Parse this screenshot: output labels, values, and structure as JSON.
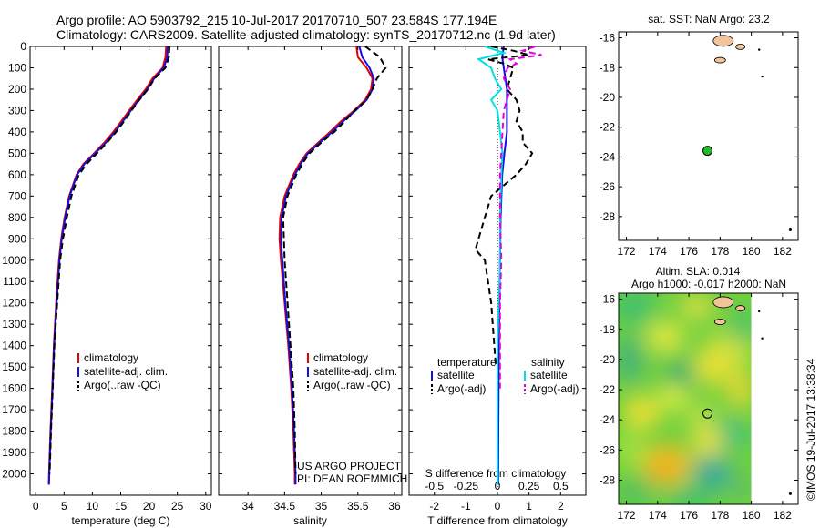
{
  "header": {
    "line1": "Argo profile: AO 5903792_215 10-Jul-2017 20170710_507 23.584S 177.194E",
    "line2": "Climatology: CARS2009. Satellite-adjusted climatology: synTS_20170712.nc (1.9d later)"
  },
  "colors": {
    "climatology": "#e00000",
    "satellite": "#1010e0",
    "argo": "#000000",
    "sal_satellite": "#00e0e0",
    "sal_argo": "#e000e0",
    "land": "#f2c49b",
    "float_marker": "#22bb22"
  },
  "chart_data": [
    {
      "type": "line",
      "name": "temperature-profile",
      "xlabel": "temperature (deg C)",
      "xlim": [
        -1,
        31
      ],
      "xticks": [
        0,
        5,
        10,
        15,
        20,
        25,
        30
      ],
      "ylim": [
        0,
        2100
      ],
      "yticks": [
        0,
        100,
        200,
        300,
        400,
        500,
        600,
        700,
        800,
        900,
        1000,
        1100,
        1200,
        1300,
        1400,
        1500,
        1600,
        1700,
        1800,
        1900,
        2000
      ],
      "y_reversed": true,
      "legend": {
        "position": "bottom-right",
        "entries": [
          "climatology",
          "satellite-adj. clim.",
          "Argo(..raw -QC)"
        ]
      },
      "series": [
        {
          "name": "climatology",
          "style": "solid",
          "depth": [
            0,
            50,
            100,
            150,
            200,
            250,
            300,
            350,
            400,
            450,
            500,
            550,
            600,
            700,
            800,
            900,
            1000,
            1200,
            1400,
            1600,
            1800,
            2000,
            2050
          ],
          "values": [
            23.0,
            22.9,
            22.4,
            20.6,
            19.4,
            17.9,
            16.5,
            15.1,
            13.7,
            12.1,
            10.3,
            8.4,
            7.2,
            5.9,
            5.1,
            4.5,
            4.1,
            3.6,
            3.2,
            2.9,
            2.6,
            2.35,
            2.3
          ]
        },
        {
          "name": "satellite-adj. clim.",
          "style": "solid",
          "depth": [
            0,
            50,
            100,
            150,
            200,
            250,
            300,
            350,
            400,
            450,
            500,
            550,
            600,
            700,
            800,
            900,
            1000,
            1200,
            1400,
            1600,
            1800,
            2000,
            2050
          ],
          "values": [
            23.3,
            23.2,
            22.6,
            20.9,
            19.7,
            18.2,
            16.8,
            15.4,
            14.0,
            12.4,
            10.5,
            8.6,
            7.3,
            6.0,
            5.2,
            4.6,
            4.2,
            3.7,
            3.25,
            2.95,
            2.65,
            2.4,
            2.35
          ]
        },
        {
          "name": "Argo(..raw -QC)",
          "style": "dashed",
          "depth": [
            0,
            50,
            100,
            150,
            200,
            250,
            300,
            350,
            400,
            450,
            500,
            550,
            600,
            700,
            800,
            900,
            1000,
            1200,
            1400,
            1600,
            1800,
            2000
          ],
          "values": [
            23.6,
            23.5,
            22.9,
            21.0,
            19.8,
            18.3,
            16.9,
            15.6,
            14.2,
            12.6,
            10.8,
            9.0,
            7.6,
            6.3,
            5.5,
            4.8,
            4.3,
            3.8,
            3.3,
            3.0,
            2.7,
            2.45
          ]
        }
      ]
    },
    {
      "type": "line",
      "name": "salinity-profile",
      "xlabel": "salinity",
      "xlim": [
        33.6,
        36.1
      ],
      "xticks": [
        34,
        34.5,
        35,
        35.5,
        36
      ],
      "ylim": [
        0,
        2100
      ],
      "y_reversed": true,
      "legend": {
        "position": "bottom-right",
        "entries": [
          "climatology",
          "satellite-adj. clim.",
          "Argo(..raw -QC)"
        ]
      },
      "annotations": [
        "US ARGO PROJECT",
        "PI: DEAN ROEMMICH"
      ],
      "series": [
        {
          "name": "climatology",
          "style": "solid",
          "depth": [
            0,
            50,
            100,
            150,
            200,
            250,
            300,
            350,
            400,
            450,
            500,
            550,
            600,
            700,
            800,
            900,
            1000,
            1200,
            1400,
            1600,
            1800,
            2000,
            2050
          ],
          "values": [
            35.48,
            35.5,
            35.62,
            35.7,
            35.68,
            35.6,
            35.45,
            35.27,
            35.12,
            34.96,
            34.8,
            34.7,
            34.62,
            34.5,
            34.44,
            34.43,
            34.45,
            34.5,
            34.55,
            34.59,
            34.62,
            34.64,
            34.64
          ]
        },
        {
          "name": "satellite-adj. clim.",
          "style": "solid",
          "depth": [
            0,
            50,
            100,
            150,
            200,
            250,
            300,
            350,
            400,
            450,
            500,
            550,
            600,
            700,
            800,
            900,
            1000,
            1200,
            1400,
            1600,
            1800,
            2000,
            2050
          ],
          "values": [
            35.52,
            35.56,
            35.66,
            35.72,
            35.7,
            35.62,
            35.47,
            35.3,
            35.15,
            34.98,
            34.82,
            34.72,
            34.64,
            34.52,
            34.46,
            34.45,
            34.47,
            34.51,
            34.56,
            34.6,
            34.63,
            34.65,
            34.65
          ]
        },
        {
          "name": "Argo(..raw -QC)",
          "style": "dashed",
          "depth": [
            0,
            50,
            100,
            150,
            200,
            250,
            300,
            350,
            400,
            450,
            500,
            550,
            600,
            700,
            800,
            900,
            1000,
            1200,
            1400,
            1600,
            1800,
            2000
          ],
          "values": [
            35.6,
            35.8,
            35.88,
            35.76,
            35.7,
            35.62,
            35.46,
            35.32,
            35.18,
            35.0,
            34.84,
            34.74,
            34.66,
            34.54,
            34.48,
            34.49,
            34.5,
            34.54,
            34.58,
            34.62,
            34.64,
            34.65
          ]
        }
      ]
    },
    {
      "type": "line",
      "name": "difference-profile",
      "xlabel": "T difference from climatology",
      "xlabel_top": "S difference from climatology",
      "xlim_T": [
        -2.8,
        2.8
      ],
      "xticks_T": [
        -2,
        -1,
        0,
        1,
        2
      ],
      "xlim_S": [
        -0.7,
        0.7
      ],
      "xticks_S": [
        "-0.5",
        "-0.25",
        "0",
        "0.25",
        "0.5"
      ],
      "ylim": [
        0,
        2100
      ],
      "y_reversed": true,
      "legend": {
        "position": "bottom",
        "temperature_title": "temperature",
        "salinity_title": "salinity",
        "temperature_entries": [
          "satellite",
          "Argo(-adj)"
        ],
        "salinity_entries": [
          "satellite",
          "Argo(-adj)"
        ]
      },
      "series": [
        {
          "name": "T satellite",
          "style": "solid",
          "axis": "T",
          "depth": [
            0,
            50,
            100,
            200,
            300,
            400,
            500,
            600,
            800,
            1000,
            1200,
            1500,
            1800,
            2050
          ],
          "values": [
            0.2,
            0.15,
            0.2,
            0.3,
            0.3,
            0.3,
            0.22,
            0.15,
            0.1,
            0.08,
            0.06,
            0.04,
            0.03,
            0.02
          ]
        },
        {
          "name": "T Argo(-adj)",
          "style": "dashed",
          "axis": "T",
          "depth": [
            0,
            20,
            40,
            60,
            80,
            100,
            150,
            200,
            250,
            300,
            350,
            400,
            450,
            500,
            550,
            600,
            650,
            700,
            750,
            800,
            850,
            900,
            950,
            1000,
            1100,
            1200,
            1300,
            1400,
            1500
          ],
          "values": [
            -0.2,
            0.5,
            1.0,
            -0.3,
            0.2,
            0.5,
            0.4,
            0.3,
            0.6,
            0.7,
            0.6,
            0.8,
            0.8,
            1.1,
            0.9,
            0.6,
            0.2,
            -0.2,
            -0.3,
            -0.4,
            -0.5,
            -0.6,
            -0.7,
            -0.4,
            -0.3,
            -0.2,
            -0.15,
            -0.1,
            -0.05
          ]
        },
        {
          "name": "S satellite",
          "style": "solid",
          "axis": "S",
          "depth": [
            0,
            30,
            60,
            100,
            150,
            200,
            250,
            300,
            400,
            500,
            600,
            800,
            1000,
            1400,
            1800,
            2050
          ],
          "values": [
            -0.1,
            0.05,
            -0.15,
            -0.05,
            -0.02,
            0.03,
            -0.05,
            0.0,
            0.02,
            0.04,
            0.03,
            0.02,
            0.02,
            0.0,
            0.0,
            0.0
          ]
        },
        {
          "name": "S Argo(-adj)",
          "style": "dashed",
          "axis": "S",
          "depth": [
            0,
            20,
            40,
            60,
            80,
            100,
            150,
            200,
            300,
            400,
            500,
            600,
            800,
            1000,
            1200,
            1400,
            1600
          ],
          "values": [
            0.3,
            0.2,
            0.35,
            0.1,
            0.15,
            0.08,
            0.05,
            0.1,
            0.05,
            0.04,
            0.03,
            0.02,
            0.02,
            0.03,
            0.02,
            0.02,
            0.02
          ]
        }
      ]
    },
    {
      "type": "scatter",
      "name": "location-map-sst",
      "title": "sat. SST: NaN Argo: 23.2",
      "xlim": [
        171.5,
        183
      ],
      "xticks": [
        172,
        174,
        176,
        178,
        180,
        182
      ],
      "ylim": [
        -29.6,
        -15.6
      ],
      "yticks": [
        -16,
        -18,
        -20,
        -22,
        -24,
        -26,
        -28
      ],
      "points": [
        {
          "lon": 177.194,
          "lat": -23.584,
          "marker": "filled-circle"
        }
      ]
    },
    {
      "type": "heatmap",
      "name": "location-map-sla",
      "title_line1": "Altim. SLA: 0.014",
      "title_line2": "Argo h1000: -0.017 h2000: NaN",
      "xlim": [
        171.5,
        183
      ],
      "xticks": [
        172,
        174,
        176,
        178,
        180,
        182
      ],
      "ylim": [
        -29.6,
        -15.6
      ],
      "yticks": [
        -16,
        -18,
        -20,
        -22,
        -24,
        -26,
        -28
      ],
      "field_lon_range": [
        171.5,
        180
      ],
      "colormap": "blue-green-yellow-orange",
      "points": [
        {
          "lon": 177.194,
          "lat": -23.584,
          "marker": "open-circle"
        }
      ]
    }
  ],
  "footer": {
    "credit": "©IMOS 19-Jul-2017 13:38:34"
  }
}
